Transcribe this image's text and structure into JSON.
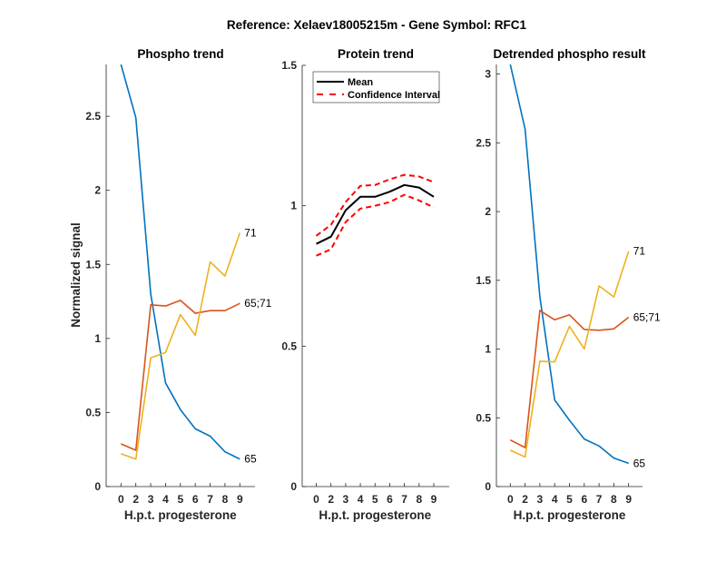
{
  "figure": {
    "suptitle": "Reference:  Xelaev18005215m - Gene Symbol:  RFC1"
  },
  "chart_data": [
    {
      "type": "line",
      "id": "phospho",
      "title": "Phospho trend",
      "xlabel": "H.p.t. progesterone",
      "ylabel": "Normalized signal",
      "categories": [
        "0",
        "2",
        "3",
        "4",
        "5",
        "6",
        "7",
        "8",
        "9"
      ],
      "ylim": [
        0,
        2.85
      ],
      "yticks": [
        0,
        0.5,
        1,
        1.5,
        2,
        2.5
      ],
      "ytick_labels": [
        "0",
        "0.5",
        "1",
        "1.5",
        "2",
        "2.5"
      ],
      "grid": false,
      "series": [
        {
          "name": "65",
          "color": "#0072BD",
          "values": [
            2.85,
            2.49,
            1.3,
            0.7,
            0.52,
            0.39,
            0.34,
            0.235,
            0.186
          ]
        },
        {
          "name": "65;71",
          "color": "#D95319",
          "values": [
            0.288,
            0.245,
            1.227,
            1.219,
            1.257,
            1.17,
            1.188,
            1.188,
            1.237
          ]
        },
        {
          "name": "71",
          "color": "#EDB120",
          "values": [
            0.221,
            0.186,
            0.869,
            0.906,
            1.161,
            1.022,
            1.517,
            1.422,
            1.713
          ]
        }
      ]
    },
    {
      "type": "line",
      "id": "protein",
      "title": "Protein trend",
      "xlabel": "H.p.t. progesterone",
      "ylabel": "",
      "categories": [
        "0",
        "2",
        "3",
        "4",
        "5",
        "6",
        "7",
        "8",
        "9"
      ],
      "ylim": [
        0,
        1.5
      ],
      "yticks": [
        0,
        0.5,
        1,
        1.5
      ],
      "ytick_labels": [
        "0",
        "0.5",
        "1",
        "1.5"
      ],
      "grid": false,
      "legend": {
        "position": "top",
        "entries": [
          "Mean",
          "Confidence Interval"
        ]
      },
      "series": [
        {
          "name": "Mean",
          "color": "#000000",
          "style": "solid",
          "values": [
            0.864,
            0.89,
            0.984,
            1.032,
            1.032,
            1.05,
            1.074,
            1.065,
            1.032
          ]
        },
        {
          "name": "Confidence Interval",
          "color": "#FF0000",
          "style": "dashed",
          "values": [
            0.893,
            0.932,
            1.013,
            1.071,
            1.074,
            1.094,
            1.11,
            1.104,
            1.084
          ]
        },
        {
          "name": "Confidence Interval (lower)",
          "color": "#FF0000",
          "style": "dashed",
          "values": [
            0.822,
            0.845,
            0.942,
            0.99,
            1.0,
            1.013,
            1.039,
            1.019,
            0.994
          ]
        }
      ]
    },
    {
      "type": "line",
      "id": "detrended",
      "title": "Detrended phospho result",
      "xlabel": "H.p.t. progesterone",
      "ylabel": "",
      "categories": [
        "0",
        "2",
        "3",
        "4",
        "5",
        "6",
        "7",
        "8",
        "9"
      ],
      "ylim": [
        0,
        3.07
      ],
      "yticks": [
        0,
        0.5,
        1,
        1.5,
        2,
        2.5,
        3
      ],
      "ytick_labels": [
        "0",
        "0.5",
        "1",
        "1.5",
        "2",
        "2.5",
        "3"
      ],
      "grid": false,
      "series": [
        {
          "name": "65",
          "color": "#0072BD",
          "values": [
            3.07,
            2.6,
            1.38,
            0.63,
            0.482,
            0.346,
            0.295,
            0.207,
            0.169
          ]
        },
        {
          "name": "65;71",
          "color": "#D95319",
          "values": [
            0.339,
            0.284,
            1.28,
            1.213,
            1.249,
            1.143,
            1.137,
            1.147,
            1.231
          ]
        },
        {
          "name": "71",
          "color": "#EDB120",
          "values": [
            0.264,
            0.215,
            0.912,
            0.907,
            1.165,
            1.0,
            1.46,
            1.379,
            1.712
          ]
        }
      ]
    }
  ]
}
